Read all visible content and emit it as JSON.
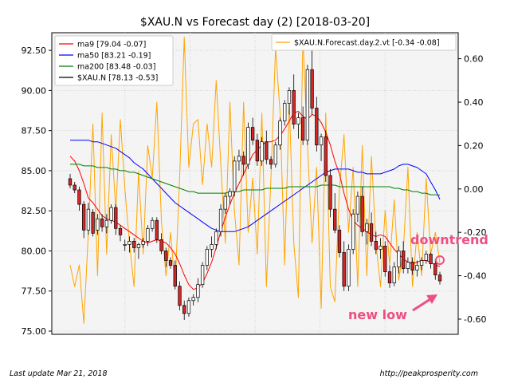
{
  "chart_data": {
    "type": "candlestick",
    "title": "$XAU.N vs Forecast day (2)  [2018-03-20]",
    "ylim_left": [
      74.8,
      93.6
    ],
    "ylim_right": [
      -0.67,
      0.72
    ],
    "left_ticks": [
      "75.00",
      "77.50",
      "80.00",
      "82.50",
      "85.00",
      "87.50",
      "90.00",
      "92.50"
    ],
    "left_tick_values": [
      75,
      77.5,
      80,
      82.5,
      85,
      87.5,
      90,
      92.5
    ],
    "right_ticks": [
      "-0.60",
      "-0.40",
      "-0.20",
      "0.00",
      "0.20",
      "0.40",
      "0.60"
    ],
    "right_tick_values": [
      -0.6,
      -0.4,
      -0.2,
      0,
      0.2,
      0.4,
      0.6
    ],
    "grid": true,
    "legend_left": {
      "placement": "upper-left",
      "entries": [
        {
          "label": "ma9 [79.04 -0.07]",
          "color": "#ff0000"
        },
        {
          "label": "ma50 [83.21 -0.19]",
          "color": "#0000ff"
        },
        {
          "label": "ma200 [83.48 -0.03]",
          "color": "#008000"
        },
        {
          "label": "$XAU.N [78.13 -0.53]",
          "color": "#000000"
        }
      ]
    },
    "legend_right": {
      "placement": "upper-right",
      "entries": [
        {
          "label": "$XAU.N.Forecast.day.2.vt [-0.34 -0.08]",
          "color": "#ffa500"
        }
      ]
    },
    "candles": [
      [
        84.5,
        84.8,
        83.9,
        84.1
      ],
      [
        84.1,
        84.3,
        83.6,
        83.8
      ],
      [
        83.8,
        84.0,
        82.5,
        82.9
      ],
      [
        82.9,
        83.1,
        80.8,
        81.3
      ],
      [
        81.3,
        83.0,
        81.0,
        82.6
      ],
      [
        82.4,
        82.6,
        80.9,
        81.1
      ],
      [
        81.3,
        82.3,
        81.0,
        82.0
      ],
      [
        82.0,
        82.3,
        81.2,
        81.5
      ],
      [
        81.5,
        82.3,
        81.1,
        81.9
      ],
      [
        81.9,
        82.9,
        81.7,
        82.7
      ],
      [
        82.7,
        82.9,
        81.0,
        81.4
      ],
      [
        81.4,
        81.6,
        80.6,
        81.0
      ],
      [
        80.4,
        80.7,
        80.0,
        80.4
      ],
      [
        80.4,
        80.9,
        79.9,
        80.6
      ],
      [
        80.6,
        80.8,
        79.9,
        80.2
      ],
      [
        80.2,
        80.5,
        79.5,
        80.4
      ],
      [
        80.4,
        80.8,
        80.2,
        80.6
      ],
      [
        80.6,
        81.6,
        80.3,
        81.4
      ],
      [
        81.4,
        82.1,
        81.2,
        81.9
      ],
      [
        81.9,
        82.1,
        80.5,
        80.7
      ],
      [
        80.7,
        81.1,
        79.8,
        80.0
      ],
      [
        80.0,
        80.2,
        79.0,
        79.4
      ],
      [
        79.4,
        79.6,
        78.9,
        79.1
      ],
      [
        79.1,
        79.4,
        77.6,
        77.8
      ],
      [
        77.8,
        78.1,
        76.3,
        76.6
      ],
      [
        76.6,
        76.9,
        75.7,
        76.1
      ],
      [
        76.1,
        77.1,
        75.9,
        76.9
      ],
      [
        76.9,
        77.3,
        76.6,
        77.1
      ],
      [
        77.1,
        78.3,
        76.8,
        77.9
      ],
      [
        77.9,
        79.3,
        77.7,
        79.1
      ],
      [
        79.1,
        80.3,
        78.8,
        80.1
      ],
      [
        80.1,
        80.9,
        79.6,
        80.4
      ],
      [
        80.4,
        81.4,
        80.1,
        81.2
      ],
      [
        81.2,
        82.9,
        80.9,
        82.6
      ],
      [
        82.6,
        83.6,
        82.3,
        83.4
      ],
      [
        83.4,
        83.9,
        82.9,
        83.7
      ],
      [
        83.7,
        85.9,
        83.4,
        85.6
      ],
      [
        85.6,
        86.3,
        85.0,
        85.9
      ],
      [
        85.9,
        86.2,
        84.7,
        85.4
      ],
      [
        85.4,
        88.0,
        85.1,
        87.7
      ],
      [
        87.7,
        88.3,
        86.6,
        86.9
      ],
      [
        86.9,
        87.3,
        85.3,
        85.6
      ],
      [
        85.6,
        87.1,
        85.3,
        86.8
      ],
      [
        86.8,
        87.5,
        85.4,
        85.7
      ],
      [
        85.7,
        85.9,
        85.1,
        85.4
      ],
      [
        85.4,
        86.8,
        85.2,
        86.6
      ],
      [
        86.6,
        88.3,
        86.3,
        88.1
      ],
      [
        88.1,
        89.4,
        87.8,
        89.2
      ],
      [
        89.2,
        90.2,
        88.5,
        90.0
      ],
      [
        90.0,
        91.0,
        87.6,
        87.9
      ],
      [
        87.9,
        88.6,
        87.0,
        88.3
      ],
      [
        88.3,
        89.0,
        86.6,
        86.9
      ],
      [
        86.9,
        91.6,
        86.6,
        91.3
      ],
      [
        91.3,
        92.6,
        88.5,
        88.9
      ],
      [
        88.9,
        89.6,
        86.2,
        86.6
      ],
      [
        86.6,
        87.3,
        85.6,
        87.1
      ],
      [
        87.1,
        87.5,
        84.3,
        84.7
      ],
      [
        84.7,
        85.1,
        82.1,
        82.6
      ],
      [
        82.6,
        83.6,
        81.1,
        81.3
      ],
      [
        81.3,
        81.6,
        79.6,
        79.9
      ],
      [
        79.9,
        80.6,
        77.5,
        77.8
      ],
      [
        77.8,
        80.4,
        77.5,
        80.1
      ],
      [
        80.1,
        82.6,
        79.8,
        82.3
      ],
      [
        82.3,
        83.7,
        81.8,
        83.4
      ],
      [
        83.4,
        84.0,
        80.9,
        81.2
      ],
      [
        81.2,
        82.0,
        80.4,
        81.7
      ],
      [
        81.7,
        82.4,
        80.3,
        80.6
      ],
      [
        80.6,
        81.2,
        79.8,
        80.1
      ],
      [
        80.1,
        80.8,
        79.5,
        80.3
      ],
      [
        80.3,
        80.6,
        78.4,
        78.7
      ],
      [
        78.7,
        79.1,
        77.7,
        78.0
      ],
      [
        78.0,
        79.3,
        77.8,
        79.0
      ],
      [
        79.0,
        80.3,
        78.6,
        80.0
      ],
      [
        80.0,
        80.6,
        78.6,
        78.9
      ],
      [
        78.9,
        79.6,
        78.6,
        79.3
      ],
      [
        79.3,
        79.6,
        78.5,
        78.8
      ],
      [
        78.8,
        79.4,
        78.4,
        79.1
      ],
      [
        79.1,
        79.6,
        78.8,
        79.4
      ],
      [
        79.4,
        80.0,
        79.2,
        79.8
      ],
      [
        79.8,
        79.9,
        78.9,
        79.2
      ],
      [
        79.2,
        79.5,
        78.2,
        78.5
      ],
      [
        78.5,
        78.7,
        77.9,
        78.13
      ]
    ],
    "series": [
      {
        "name": "ma9",
        "color": "#ff0000",
        "axis": "left",
        "values": [
          85.9,
          85.6,
          85.0,
          84.2,
          83.3,
          83.0,
          82.6,
          82.2,
          82.0,
          81.9,
          81.8,
          81.6,
          81.4,
          81.2,
          81.0,
          80.8,
          80.6,
          80.5,
          80.6,
          80.7,
          80.6,
          80.5,
          80.2,
          79.8,
          79.2,
          78.5,
          77.9,
          77.6,
          77.7,
          78.0,
          78.6,
          79.3,
          80.2,
          81.2,
          82.1,
          82.9,
          83.6,
          84.2,
          84.8,
          85.4,
          86.0,
          86.3,
          86.6,
          86.8,
          86.8,
          86.9,
          87.2,
          87.6,
          88.1,
          88.6,
          88.7,
          88.4,
          88.2,
          88.5,
          88.4,
          88.0,
          87.4,
          86.6,
          85.6,
          84.8,
          83.6,
          82.6,
          81.9,
          81.6,
          81.4,
          81.2,
          81.0,
          80.9,
          81.0,
          80.9,
          80.5,
          80.1,
          79.8,
          79.5,
          79.3,
          79.2,
          79.3,
          79.4,
          79.4,
          79.3,
          79.1,
          79.04
        ]
      },
      {
        "name": "ma50",
        "color": "#0000ff",
        "axis": "left",
        "values": [
          86.9,
          86.9,
          86.9,
          86.9,
          86.9,
          86.8,
          86.8,
          86.7,
          86.6,
          86.5,
          86.4,
          86.2,
          86.0,
          85.8,
          85.5,
          85.3,
          85.1,
          84.8,
          84.5,
          84.2,
          83.9,
          83.6,
          83.3,
          83.0,
          82.8,
          82.6,
          82.4,
          82.2,
          82.0,
          81.8,
          81.6,
          81.4,
          81.3,
          81.2,
          81.2,
          81.2,
          81.2,
          81.3,
          81.4,
          81.5,
          81.7,
          81.9,
          82.1,
          82.3,
          82.5,
          82.7,
          82.9,
          83.1,
          83.3,
          83.5,
          83.7,
          83.9,
          84.1,
          84.3,
          84.5,
          84.7,
          84.9,
          85.0,
          85.1,
          85.1,
          85.1,
          85.1,
          85.0,
          84.9,
          84.9,
          84.8,
          84.8,
          84.8,
          84.8,
          84.9,
          85.0,
          85.1,
          85.3,
          85.4,
          85.4,
          85.3,
          85.2,
          85.0,
          84.8,
          84.3,
          83.8,
          83.21
        ]
      },
      {
        "name": "ma200",
        "color": "#008000",
        "axis": "left",
        "values": [
          85.4,
          85.4,
          85.4,
          85.3,
          85.3,
          85.3,
          85.2,
          85.2,
          85.2,
          85.1,
          85.1,
          85.0,
          85.0,
          84.9,
          84.9,
          84.8,
          84.7,
          84.6,
          84.5,
          84.4,
          84.3,
          84.2,
          84.1,
          84.0,
          83.9,
          83.8,
          83.7,
          83.7,
          83.6,
          83.6,
          83.6,
          83.6,
          83.6,
          83.6,
          83.6,
          83.7,
          83.7,
          83.7,
          83.8,
          83.8,
          83.8,
          83.8,
          83.8,
          83.9,
          83.9,
          83.9,
          83.9,
          83.9,
          84.0,
          84.0,
          84.0,
          84.0,
          84.0,
          84.0,
          84.0,
          84.1,
          84.1,
          84.1,
          84.1,
          84.0,
          84.0,
          84.0,
          84.0,
          84.0,
          84.0,
          84.0,
          84.0,
          84.0,
          84.0,
          84.0,
          84.0,
          83.9,
          83.9,
          83.8,
          83.8,
          83.7,
          83.7,
          83.6,
          83.6,
          83.5,
          83.5,
          83.48
        ]
      },
      {
        "name": "$XAU.N.Forecast.day.2.vt",
        "color": "#ffa500",
        "axis": "right",
        "values": [
          -0.35,
          -0.45,
          -0.35,
          -0.62,
          -0.2,
          0.3,
          -0.4,
          0.35,
          -0.3,
          0.25,
          -0.1,
          0.32,
          0.0,
          -0.25,
          -0.45,
          0.08,
          -0.3,
          0.2,
          0.05,
          0.4,
          -0.15,
          -0.4,
          -0.2,
          -0.45,
          0.06,
          0.7,
          0.1,
          0.3,
          0.32,
          0.02,
          0.3,
          0.1,
          0.5,
          0.12,
          -0.25,
          0.4,
          -0.1,
          -0.35,
          0.4,
          -0.2,
          0.05,
          -0.3,
          0.35,
          -0.45,
          0.05,
          0.65,
          0.35,
          -0.35,
          0.4,
          -0.25,
          -0.5,
          0.7,
          0.2,
          -0.25,
          0.1,
          -0.55,
          0.35,
          -0.45,
          -0.52,
          0.0,
          0.25,
          -0.2,
          0.1,
          -0.45,
          0.2,
          -0.4,
          0.15,
          -0.25,
          -0.45,
          -0.1,
          -0.35,
          -0.05,
          -0.42,
          -0.28,
          0.1,
          -0.45,
          -0.2,
          -0.4,
          0.05,
          -0.3,
          -0.2,
          -0.34
        ]
      }
    ],
    "annotations": [
      {
        "text": "downtrend",
        "color": "#ee4f80"
      },
      {
        "text": "new low",
        "color": "#ee4f80"
      }
    ],
    "footer": {
      "left": "Last update Mar 21, 2018",
      "right": "http://peakprosperity.com"
    }
  }
}
